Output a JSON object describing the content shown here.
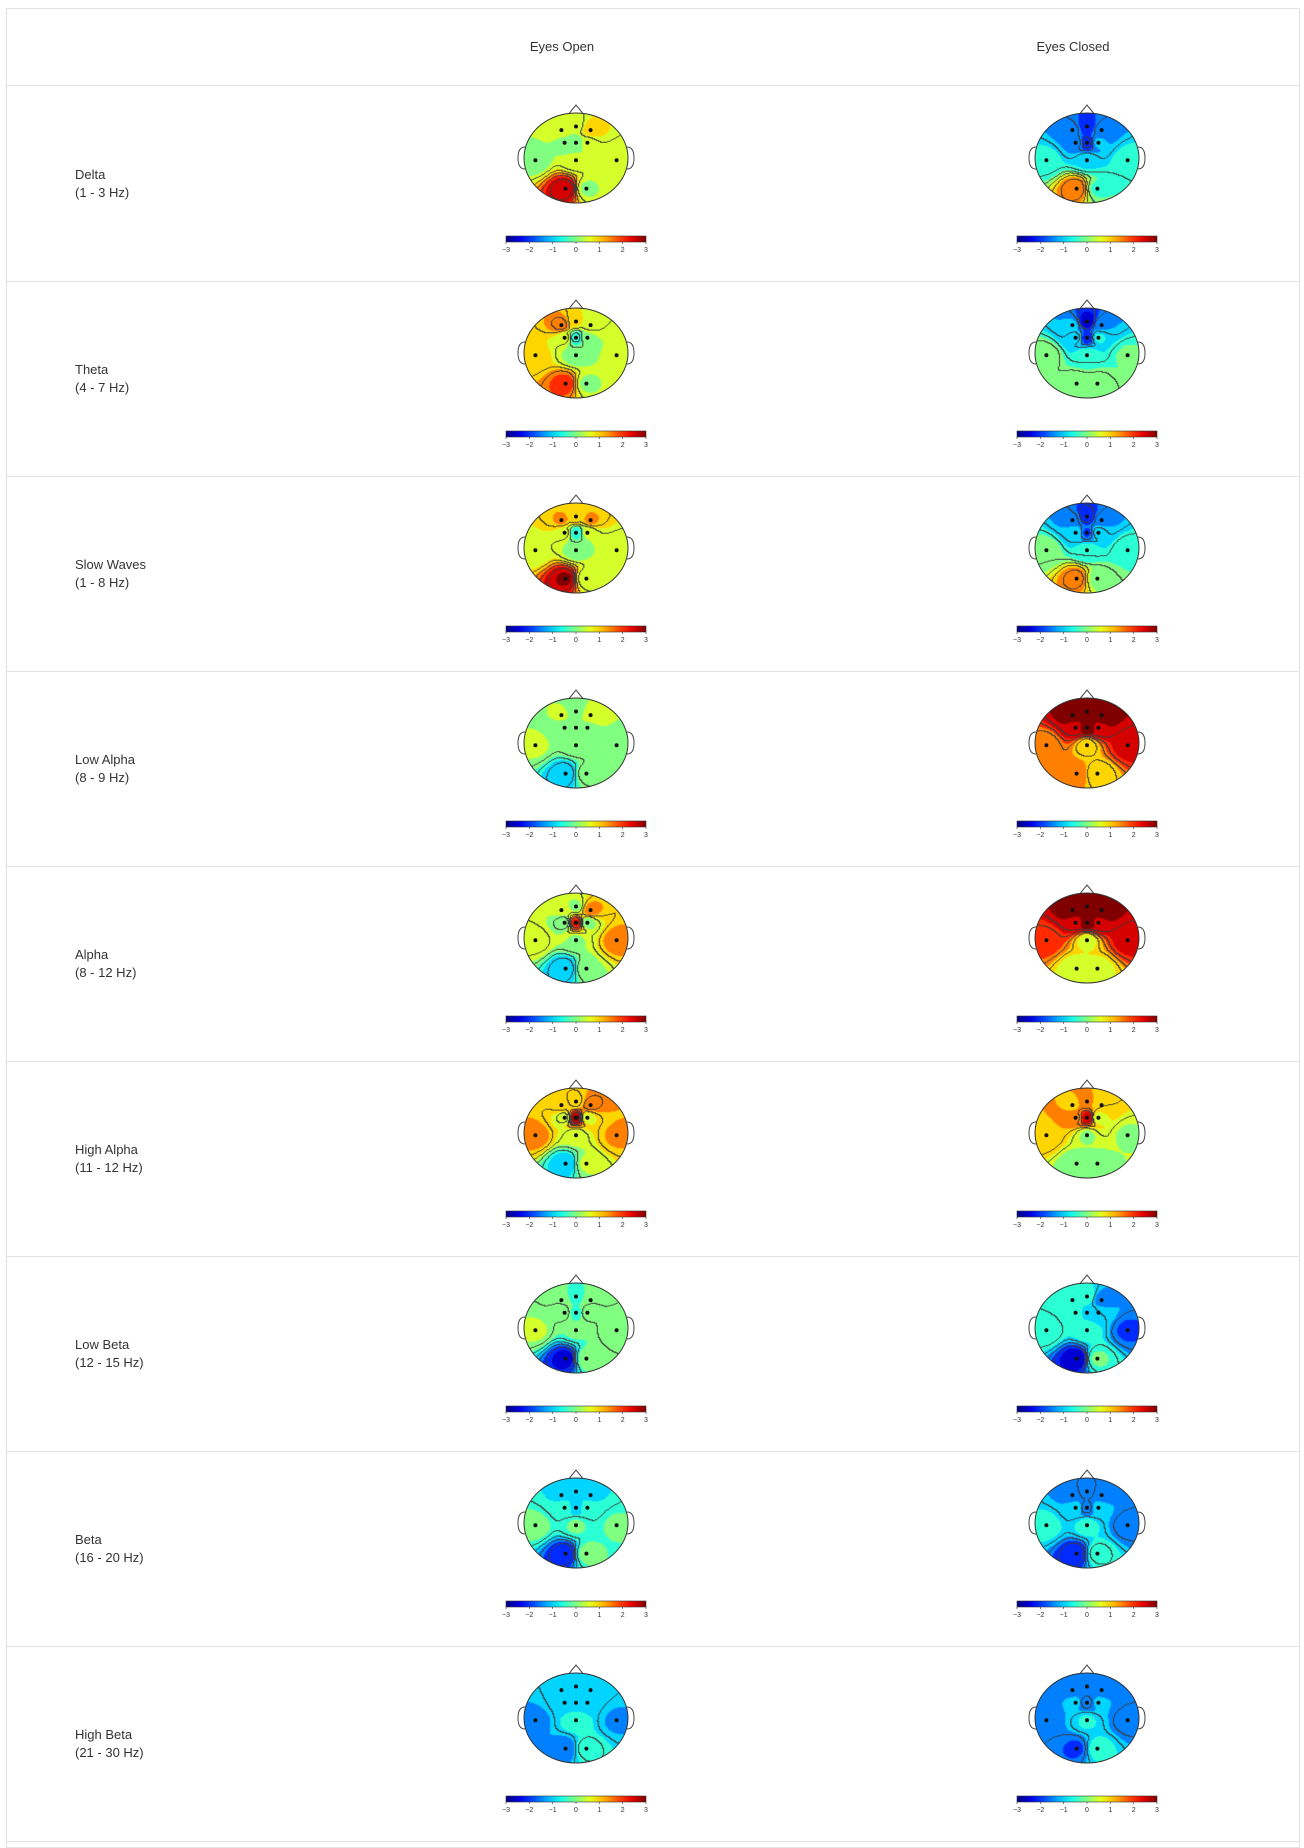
{
  "columns": [
    "",
    "Eyes Open",
    "Eyes Closed"
  ],
  "colorbar": {
    "ticks": [
      "−3",
      "−2",
      "−1",
      "0",
      "1",
      "2",
      "3"
    ],
    "range": [
      -3,
      3
    ],
    "colormap": "jet"
  },
  "electrodes": [
    "F3",
    "Fz",
    "F4",
    "C3",
    "Cz",
    "C4",
    "T3",
    "T4",
    "Pz",
    "O1",
    "O2"
  ],
  "chart_data": {
    "type": "heatmap",
    "title": "",
    "value_range": [
      -3,
      3
    ],
    "rows": [
      {
        "band": "Delta",
        "range": "(1 - 3 Hz)",
        "eyes_open": {
          "F3": 0.4,
          "Fz": 0.3,
          "F4": 1.0,
          "C3": 0.2,
          "Cz": 0.0,
          "C4": 0.4,
          "T3": 0.1,
          "T4": 0.3,
          "Pz": 0.3,
          "O1": 2.7,
          "O2": 0.2
        },
        "eyes_closed": {
          "F3": -1.4,
          "Fz": -2.0,
          "F4": -1.4,
          "C3": -1.3,
          "Cz": -2.1,
          "C4": -1.2,
          "T3": -0.6,
          "T4": -0.5,
          "Pz": -0.8,
          "O1": 1.7,
          "O2": -0.3
        }
      },
      {
        "band": "Theta",
        "range": "(4 - 7 Hz)",
        "eyes_open": {
          "F3": 1.6,
          "Fz": 0.8,
          "F4": 0.6,
          "C3": 0.6,
          "Cz": -0.6,
          "C4": 0.2,
          "T3": 0.9,
          "T4": 0.3,
          "Pz": 0.1,
          "O1": 1.9,
          "O2": 0.2
        },
        "eyes_closed": {
          "F3": -1.2,
          "Fz": -2.5,
          "F4": -1.3,
          "C3": -0.9,
          "Cz": -2.0,
          "C4": -0.7,
          "T3": 0.2,
          "T4": -0.2,
          "Pz": -0.5,
          "O1": 0.2,
          "O2": 0.1
        }
      },
      {
        "band": "Slow Waves",
        "range": "(1 - 8 Hz)",
        "eyes_open": {
          "F3": 1.3,
          "Fz": 1.2,
          "F4": 1.3,
          "C3": 0.6,
          "Cz": -0.5,
          "C4": 0.3,
          "T3": 0.5,
          "T4": 0.3,
          "Pz": 0.1,
          "O1": 2.8,
          "O2": 0.3
        },
        "eyes_closed": {
          "F3": -1.4,
          "Fz": -2.2,
          "F4": -1.4,
          "C3": -1.0,
          "Cz": -1.8,
          "C4": -0.9,
          "T3": 0.0,
          "T4": -0.3,
          "Pz": -0.5,
          "O1": 1.6,
          "O2": 0.1
        }
      },
      {
        "band": "Low Alpha",
        "range": "(8 - 9 Hz)",
        "eyes_open": {
          "F3": 0.3,
          "Fz": 0.1,
          "F4": 0.4,
          "C3": 0.0,
          "Cz": 0.1,
          "C4": 0.2,
          "T3": 0.3,
          "T4": 0.2,
          "Pz": 0.2,
          "O1": -1.2,
          "O2": 0.1
        },
        "eyes_closed": {
          "F3": 3.0,
          "Fz": 3.0,
          "F4": 3.0,
          "C3": 2.6,
          "Cz": 3.0,
          "C4": 2.7,
          "T3": 1.3,
          "T4": 2.4,
          "Pz": 0.8,
          "O1": 1.5,
          "O2": 0.8
        }
      },
      {
        "band": "Alpha",
        "range": "(8 - 12 Hz)",
        "eyes_open": {
          "F3": 0.3,
          "Fz": 0.2,
          "F4": 1.4,
          "C3": -0.2,
          "Cz": 2.3,
          "C4": 0.1,
          "T3": 0.6,
          "T4": 1.4,
          "Pz": 0.2,
          "O1": -1.2,
          "O2": 0.2
        },
        "eyes_closed": {
          "F3": 3.0,
          "Fz": 3.0,
          "F4": 3.0,
          "C3": 2.6,
          "Cz": 3.0,
          "C4": 2.7,
          "T3": 1.9,
          "T4": 2.4,
          "Pz": 0.6,
          "O1": 0.5,
          "O2": 0.6
        }
      },
      {
        "band": "High Alpha",
        "range": "(11 - 12 Hz)",
        "eyes_open": {
          "F3": 1.1,
          "Fz": 0.9,
          "F4": 1.6,
          "C3": 0.4,
          "Cz": 2.8,
          "C4": 0.6,
          "T3": 1.4,
          "T4": 1.3,
          "Pz": 0.3,
          "O1": -1.0,
          "O2": 0.3
        },
        "eyes_closed": {
          "F3": 1.2,
          "Fz": 1.3,
          "F4": 1.0,
          "C3": 1.4,
          "Cz": 2.5,
          "C4": 0.6,
          "T3": 1.2,
          "T4": 0.2,
          "Pz": 0.2,
          "O1": 0.0,
          "O2": 0.1
        }
      },
      {
        "band": "Low Beta",
        "range": "(12 - 15 Hz)",
        "eyes_open": {
          "F3": 0.0,
          "Fz": -0.4,
          "F4": 0.0,
          "C3": 0.1,
          "Cz": -0.4,
          "C4": 0.1,
          "T3": 0.3,
          "T4": 0.2,
          "Pz": -0.2,
          "O1": -2.4,
          "O2": 0.0
        },
        "eyes_closed": {
          "F3": -0.7,
          "Fz": -0.5,
          "F4": -1.5,
          "C3": -0.6,
          "Cz": -0.8,
          "C4": -1.0,
          "T3": -0.3,
          "T4": -1.8,
          "Pz": -0.5,
          "O1": -2.5,
          "O2": -0.2
        }
      },
      {
        "band": "Beta",
        "range": "(16 - 20 Hz)",
        "eyes_open": {
          "F3": -0.8,
          "Fz": -1.0,
          "F4": -0.8,
          "C3": -0.6,
          "Cz": -0.9,
          "C4": -0.6,
          "T3": -0.1,
          "T4": -0.2,
          "Pz": -0.2,
          "O1": -2.2,
          "O2": -0.1
        },
        "eyes_closed": {
          "F3": -1.4,
          "Fz": -1.6,
          "F4": -1.4,
          "C3": -1.1,
          "Cz": -1.6,
          "C4": -1.1,
          "T3": -0.6,
          "T4": -1.6,
          "Pz": -0.6,
          "O1": -2.2,
          "O2": -0.4
        }
      },
      {
        "band": "High Beta",
        "range": "(21 - 30 Hz)",
        "eyes_open": {
          "F3": -1.0,
          "Fz": -1.0,
          "F4": -0.9,
          "C3": -0.9,
          "Cz": -1.0,
          "C4": -0.9,
          "T3": -1.4,
          "T4": -1.3,
          "Pz": -0.5,
          "O1": -1.5,
          "O2": -0.4
        },
        "eyes_closed": {
          "F3": -1.3,
          "Fz": -1.4,
          "F4": -1.3,
          "C3": -1.2,
          "Cz": -1.6,
          "C4": -1.2,
          "T3": -1.5,
          "T4": -1.6,
          "Pz": -0.7,
          "O1": -1.8,
          "O2": -0.6
        }
      }
    ]
  }
}
